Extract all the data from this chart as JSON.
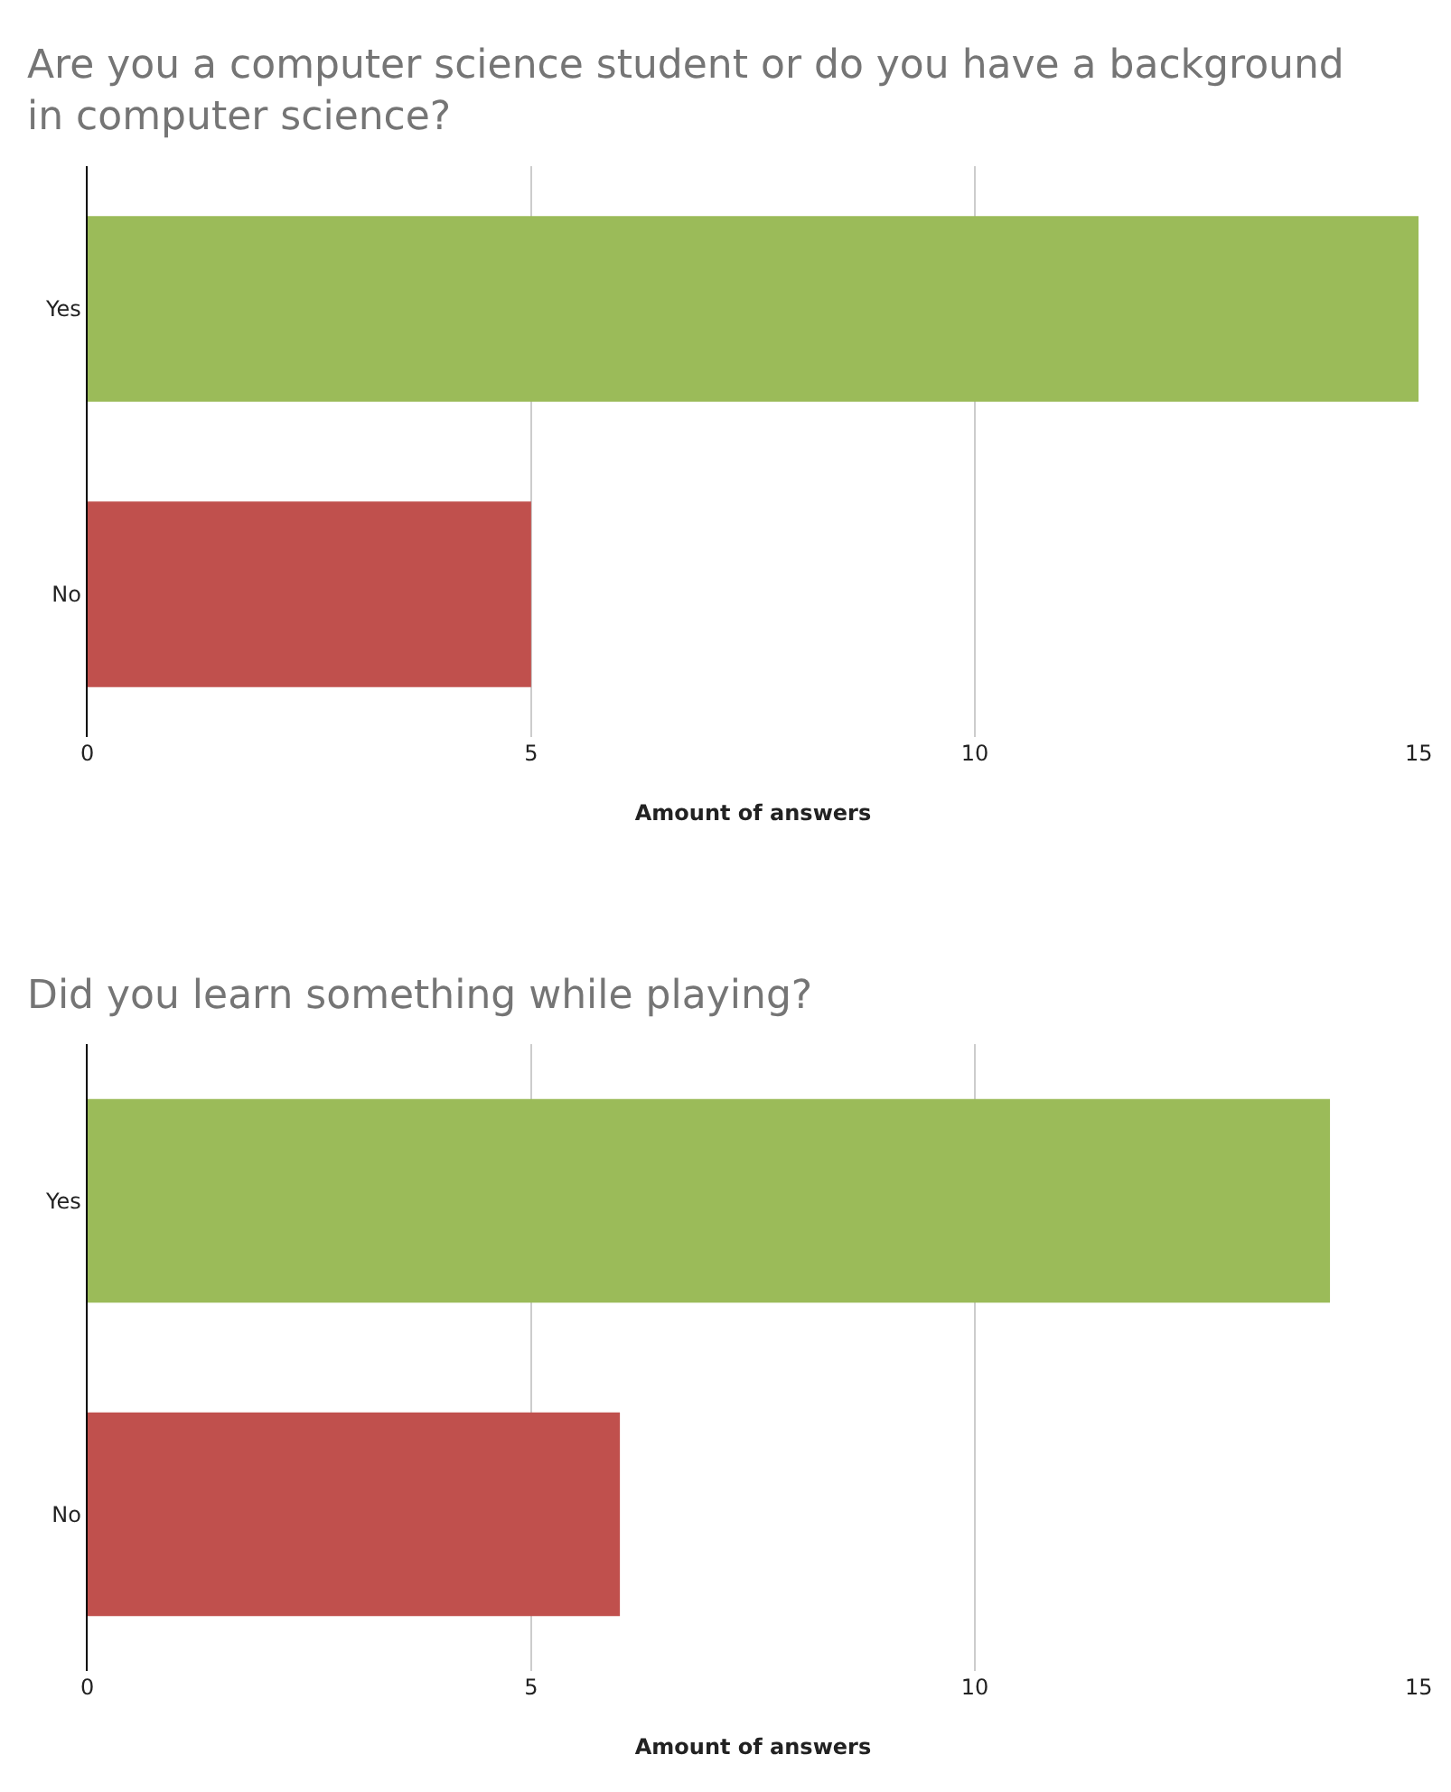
{
  "chart_data": [
    {
      "type": "bar",
      "orientation": "horizontal",
      "title": "Are you a computer science student or do you have a background in computer science?",
      "xlabel": "Amount of answers",
      "categories": [
        "Yes",
        "No"
      ],
      "values": [
        15,
        5
      ],
      "colors": [
        "#9bbb59",
        "#c0504d"
      ],
      "xlim": [
        0,
        15
      ],
      "xticks": [
        0,
        5,
        10,
        15
      ],
      "grid": "x"
    },
    {
      "type": "bar",
      "orientation": "horizontal",
      "title": "Did you learn something while playing?",
      "xlabel": "Amount of answers",
      "categories": [
        "Yes",
        "No"
      ],
      "values": [
        14,
        6
      ],
      "colors": [
        "#9bbb59",
        "#c0504d"
      ],
      "xlim": [
        0,
        15
      ],
      "xticks": [
        0,
        5,
        10,
        15
      ],
      "grid": "x"
    }
  ]
}
